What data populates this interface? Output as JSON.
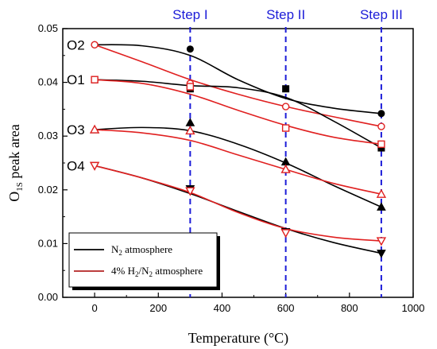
{
  "chart_data": {
    "type": "line",
    "xlabel": "Temperature (°C)",
    "ylabel": {
      "main": "O",
      "sub": "1S",
      "rest": " peak area"
    },
    "xlim": [
      -100,
      1000
    ],
    "ylim": [
      0.0,
      0.05
    ],
    "xticks": [
      0,
      200,
      400,
      600,
      800,
      1000
    ],
    "yticks": [
      "0.00",
      "0.01",
      "0.02",
      "0.03",
      "0.04",
      "0.05"
    ],
    "step_lines": [
      {
        "label": "Step I",
        "x": 300
      },
      {
        "label": "Step II",
        "x": 600
      },
      {
        "label": "Step III",
        "x": 900
      }
    ],
    "series_labels": [
      {
        "text": "O2",
        "y": 0.047
      },
      {
        "text": "O1",
        "y": 0.0405
      },
      {
        "text": "O3",
        "y": 0.0312
      },
      {
        "text": "O4",
        "y": 0.0245
      }
    ],
    "legend": {
      "position": "bottom-left",
      "entries": [
        {
          "label": {
            "pre": "N",
            "sub": "2",
            "post": " atmosphere",
            "mid": ""
          },
          "color": "#000000"
        },
        {
          "label": {
            "pre": "4% H",
            "sub": "2",
            "mid": "/N",
            "sub2": "2",
            "post": " atmosphere"
          },
          "color": "#b22222"
        }
      ]
    },
    "series": [
      {
        "group": "O2",
        "atmosphere": "N2",
        "marker": "circle-filled",
        "color": "#000000",
        "x": [
          0,
          300,
          600,
          900
        ],
        "y": [
          0.047,
          0.0462,
          0.0355,
          0.0342
        ],
        "curve": [
          [
            0,
            0.047
          ],
          [
            150,
            0.0468
          ],
          [
            300,
            0.045
          ],
          [
            450,
            0.0405
          ],
          [
            600,
            0.037
          ],
          [
            750,
            0.0352
          ],
          [
            900,
            0.0342
          ]
        ]
      },
      {
        "group": "O2",
        "atmosphere": "H2/N2",
        "marker": "circle-open",
        "color": "#e02020",
        "x": [
          0,
          300,
          600,
          900
        ],
        "y": [
          0.047,
          0.0398,
          0.0355,
          0.0318
        ],
        "curve": [
          [
            0,
            0.047
          ],
          [
            150,
            0.0438
          ],
          [
            300,
            0.0405
          ],
          [
            450,
            0.0378
          ],
          [
            600,
            0.0355
          ],
          [
            750,
            0.0336
          ],
          [
            900,
            0.0318
          ]
        ]
      },
      {
        "group": "O1",
        "atmosphere": "N2",
        "marker": "square-filled",
        "color": "#000000",
        "x": [
          0,
          300,
          600,
          900
        ],
        "y": [
          0.0405,
          0.0388,
          0.0388,
          0.0278
        ],
        "curve": [
          [
            0,
            0.0405
          ],
          [
            150,
            0.0402
          ],
          [
            300,
            0.0394
          ],
          [
            450,
            0.039
          ],
          [
            600,
            0.0372
          ],
          [
            750,
            0.0328
          ],
          [
            900,
            0.0278
          ]
        ]
      },
      {
        "group": "O1",
        "atmosphere": "H2/N2",
        "marker": "square-open",
        "color": "#e02020",
        "x": [
          0,
          300,
          600,
          900
        ],
        "y": [
          0.0405,
          0.0392,
          0.0315,
          0.0285
        ],
        "curve": [
          [
            0,
            0.0405
          ],
          [
            150,
            0.0398
          ],
          [
            300,
            0.0378
          ],
          [
            450,
            0.0348
          ],
          [
            600,
            0.032
          ],
          [
            750,
            0.0298
          ],
          [
            900,
            0.0285
          ]
        ]
      },
      {
        "group": "O3",
        "atmosphere": "N2",
        "marker": "triangle-up-filled",
        "color": "#000000",
        "x": [
          0,
          300,
          600,
          900
        ],
        "y": [
          0.0312,
          0.0325,
          0.0252,
          0.0168
        ],
        "curve": [
          [
            0,
            0.0312
          ],
          [
            150,
            0.0316
          ],
          [
            300,
            0.031
          ],
          [
            450,
            0.0285
          ],
          [
            600,
            0.025
          ],
          [
            750,
            0.0208
          ],
          [
            900,
            0.0168
          ]
        ]
      },
      {
        "group": "O3",
        "atmosphere": "H2/N2",
        "marker": "triangle-up-open",
        "color": "#e02020",
        "x": [
          0,
          300,
          600,
          900
        ],
        "y": [
          0.0312,
          0.031,
          0.0238,
          0.0192
        ],
        "curve": [
          [
            0,
            0.0312
          ],
          [
            150,
            0.0306
          ],
          [
            300,
            0.0292
          ],
          [
            450,
            0.0265
          ],
          [
            600,
            0.0238
          ],
          [
            750,
            0.0212
          ],
          [
            900,
            0.0192
          ]
        ]
      },
      {
        "group": "O4",
        "atmosphere": "N2",
        "marker": "triangle-down-filled",
        "color": "#000000",
        "x": [
          0,
          300,
          600,
          900
        ],
        "y": [
          0.0245,
          0.0202,
          0.0122,
          0.0082
        ],
        "curve": [
          [
            0,
            0.0245
          ],
          [
            150,
            0.0222
          ],
          [
            300,
            0.0193
          ],
          [
            450,
            0.016
          ],
          [
            600,
            0.0128
          ],
          [
            750,
            0.0102
          ],
          [
            900,
            0.0082
          ]
        ]
      },
      {
        "group": "O4",
        "atmosphere": "H2/N2",
        "marker": "triangle-down-open",
        "color": "#e02020",
        "x": [
          0,
          300,
          600,
          900
        ],
        "y": [
          0.0245,
          0.0198,
          0.012,
          0.0105
        ],
        "curve": [
          [
            0,
            0.0245
          ],
          [
            150,
            0.0222
          ],
          [
            300,
            0.0195
          ],
          [
            450,
            0.0158
          ],
          [
            600,
            0.0128
          ],
          [
            750,
            0.0112
          ],
          [
            900,
            0.0105
          ]
        ]
      }
    ]
  }
}
